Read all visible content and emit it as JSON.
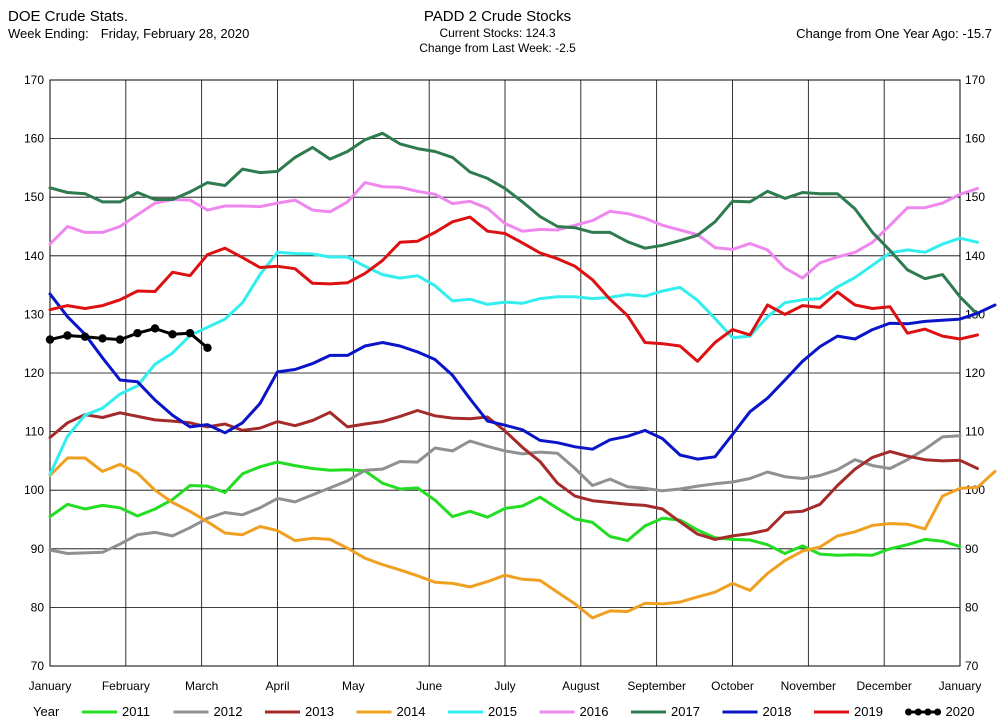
{
  "header": {
    "source": "DOE Crude Stats.",
    "week_label": "Week Ending:",
    "week_value": "Friday, February 28, 2020",
    "title": "PADD 2 Crude Stocks",
    "current_stocks": "Current Stocks: 124.3",
    "change_week": "Change from Last Week: -2.5",
    "change_year": "Change from One Year Ago: -15.7"
  },
  "chart_data": {
    "type": "line",
    "title": "PADD 2 Crude Stocks",
    "xlim": [
      0,
      52
    ],
    "ylim": [
      70,
      170
    ],
    "y_ticks": [
      70,
      80,
      90,
      100,
      110,
      120,
      130,
      140,
      150,
      160,
      170
    ],
    "x_tick_labels": [
      "January",
      "February",
      "March",
      "April",
      "May",
      "June",
      "July",
      "August",
      "September",
      "October",
      "November",
      "December",
      "January"
    ],
    "grid": true,
    "legend_title": "Year",
    "legend_position": "bottom",
    "series": [
      {
        "name": "2011",
        "color": "#22dd22",
        "values": [
          95.5,
          97.6,
          96.8,
          97.4,
          97.0,
          95.6,
          96.8,
          98.4,
          100.8,
          100.7,
          99.6,
          102.8,
          104.0,
          104.8,
          104.2,
          103.7,
          103.4,
          103.5,
          103.3,
          101.2,
          100.2,
          100.4,
          98.3,
          95.5,
          96.4,
          95.4,
          96.9,
          97.3,
          98.8,
          96.9,
          95.1,
          94.5,
          92.1,
          91.4,
          93.9,
          95.2,
          94.9,
          93.2,
          91.9,
          91.6,
          91.5,
          90.7,
          89.2,
          90.5,
          89.1,
          88.9,
          89.0,
          88.9,
          90.0,
          90.7,
          91.6,
          91.3,
          90.4
        ]
      },
      {
        "name": "2012",
        "color": "#909090",
        "values": [
          89.8,
          89.2,
          89.3,
          89.4,
          90.8,
          92.4,
          92.8,
          92.2,
          93.6,
          95.2,
          96.2,
          95.8,
          97.0,
          98.6,
          98.0,
          99.2,
          100.4,
          101.6,
          103.4,
          103.6,
          104.9,
          104.8,
          107.2,
          106.7,
          108.4,
          107.5,
          106.7,
          106.2,
          106.5,
          106.3,
          103.7,
          100.8,
          101.9,
          100.6,
          100.3,
          99.9,
          100.2,
          100.7,
          101.1,
          101.4,
          102.0,
          103.1,
          102.3,
          102.0,
          102.5,
          103.5,
          105.2,
          104.2,
          103.7,
          105.2,
          107.0,
          109.1,
          109.3
        ]
      },
      {
        "name": "2013",
        "color": "#a52a2a",
        "values": [
          109.0,
          111.5,
          112.9,
          112.4,
          113.2,
          112.6,
          112.0,
          111.8,
          111.5,
          110.8,
          111.3,
          110.2,
          110.6,
          111.7,
          111.0,
          111.9,
          113.3,
          110.8,
          111.3,
          111.7,
          112.6,
          113.6,
          112.7,
          112.3,
          112.2,
          112.5,
          110.1,
          107.3,
          104.9,
          101.2,
          99.0,
          98.2,
          97.9,
          97.6,
          97.4,
          96.8,
          94.6,
          92.5,
          91.6,
          92.2,
          92.6,
          93.2,
          96.2,
          96.4,
          97.6,
          100.8,
          103.6,
          105.6,
          106.6,
          105.8,
          105.2,
          105.0,
          105.1,
          103.7
        ]
      },
      {
        "name": "2014",
        "color": "#f0a020",
        "values": [
          102.5,
          105.5,
          105.5,
          103.2,
          104.4,
          102.9,
          100.0,
          97.9,
          96.4,
          94.6,
          92.7,
          92.4,
          93.8,
          93.1,
          91.4,
          91.8,
          91.6,
          90.1,
          88.4,
          87.3,
          86.4,
          85.4,
          84.3,
          84.1,
          83.5,
          84.4,
          85.5,
          84.8,
          84.6,
          82.6,
          80.6,
          78.2,
          79.4,
          79.3,
          80.7,
          80.6,
          80.9,
          81.8,
          82.6,
          84.1,
          82.9,
          85.8,
          88.0,
          89.6,
          90.3,
          92.2,
          92.9,
          94.0,
          94.3,
          94.2,
          93.4,
          99.0,
          100.3,
          100.5,
          103.2
        ]
      },
      {
        "name": "2015",
        "color": "#33eeee",
        "values": [
          102.7,
          109.2,
          112.8,
          114.0,
          116.4,
          117.8,
          121.5,
          123.4,
          126.4,
          127.8,
          129.2,
          132.0,
          136.8,
          140.6,
          140.4,
          140.3,
          139.8,
          139.8,
          138.2,
          136.8,
          136.2,
          136.6,
          134.9,
          132.3,
          132.6,
          131.7,
          132.1,
          131.9,
          132.7,
          133.0,
          133.0,
          132.7,
          132.9,
          133.4,
          133.1,
          134.0,
          134.6,
          132.4,
          129.3,
          126.0,
          126.3,
          129.6,
          132.0,
          132.5,
          132.7,
          134.7,
          136.3,
          138.4,
          140.5,
          141.0,
          140.6,
          142.0,
          143.0,
          142.3
        ]
      },
      {
        "name": "2016",
        "color": "#ee88ee",
        "values": [
          142.0,
          145.0,
          144.0,
          144.0,
          145.0,
          147.0,
          149.0,
          149.6,
          149.5,
          147.8,
          148.5,
          148.5,
          148.4,
          149.0,
          149.5,
          147.8,
          147.5,
          149.2,
          152.5,
          151.8,
          151.7,
          151.0,
          150.5,
          148.9,
          149.3,
          148.1,
          145.5,
          144.2,
          144.5,
          144.4,
          145.2,
          146.0,
          147.6,
          147.2,
          146.4,
          145.2,
          144.4,
          143.6,
          141.4,
          141.1,
          142.1,
          141.0,
          137.9,
          136.2,
          138.8,
          139.8,
          140.6,
          142.3,
          145.2,
          148.2,
          148.2,
          149.0,
          150.5,
          151.5
        ]
      },
      {
        "name": "2017",
        "color": "#2e7b50",
        "values": [
          151.6,
          150.8,
          150.6,
          149.2,
          149.2,
          150.8,
          149.6,
          149.6,
          150.9,
          152.5,
          152.0,
          154.8,
          154.2,
          154.4,
          156.8,
          158.5,
          156.5,
          157.8,
          159.8,
          160.9,
          159.1,
          158.3,
          157.8,
          156.8,
          154.3,
          153.2,
          151.5,
          149.2,
          146.7,
          145.0,
          144.8,
          144.0,
          144.0,
          142.4,
          141.3,
          141.8,
          142.6,
          143.5,
          145.8,
          149.3,
          149.2,
          151.0,
          149.8,
          150.8,
          150.6,
          150.6,
          148.0,
          144.0,
          140.9,
          137.6,
          136.1,
          136.8,
          133.0,
          130.0
        ]
      },
      {
        "name": "2018",
        "color": "#0a14c8",
        "values": [
          133.5,
          129.6,
          126.6,
          122.6,
          118.8,
          118.5,
          115.4,
          112.8,
          110.8,
          111.2,
          109.8,
          111.5,
          114.8,
          120.2,
          120.6,
          121.6,
          123.0,
          123.0,
          124.6,
          125.2,
          124.6,
          123.6,
          122.3,
          119.6,
          115.6,
          111.8,
          111.1,
          110.3,
          108.5,
          108.1,
          107.4,
          107.0,
          108.6,
          109.2,
          110.2,
          108.8,
          106.0,
          105.3,
          105.7,
          109.5,
          113.4,
          115.7,
          118.8,
          122.0,
          124.5,
          126.3,
          125.8,
          127.4,
          128.5,
          128.4,
          128.8,
          129.0,
          129.2,
          130.2,
          131.6
        ]
      },
      {
        "name": "2019",
        "color": "#dd1111",
        "values": [
          130.8,
          131.5,
          131.0,
          131.5,
          132.5,
          134.0,
          133.9,
          137.2,
          136.6,
          140.2,
          141.3,
          139.7,
          138.0,
          138.2,
          137.8,
          135.3,
          135.2,
          135.4,
          137.0,
          139.2,
          142.3,
          142.5,
          144.0,
          145.8,
          146.6,
          144.2,
          143.8,
          142.2,
          140.5,
          139.5,
          138.2,
          135.9,
          132.6,
          129.8,
          125.2,
          125.0,
          124.6,
          122.0,
          125.2,
          127.4,
          126.5,
          131.6,
          130.0,
          131.5,
          131.2,
          133.8,
          131.6,
          131.0,
          131.3,
          126.8,
          127.5,
          126.3,
          125.8,
          126.5
        ]
      },
      {
        "name": "2020",
        "color": "#000000",
        "marker": "circle",
        "values": [
          125.7,
          126.4,
          126.2,
          125.9,
          125.7,
          126.8,
          127.6,
          126.6,
          126.8,
          124.3
        ]
      }
    ]
  }
}
